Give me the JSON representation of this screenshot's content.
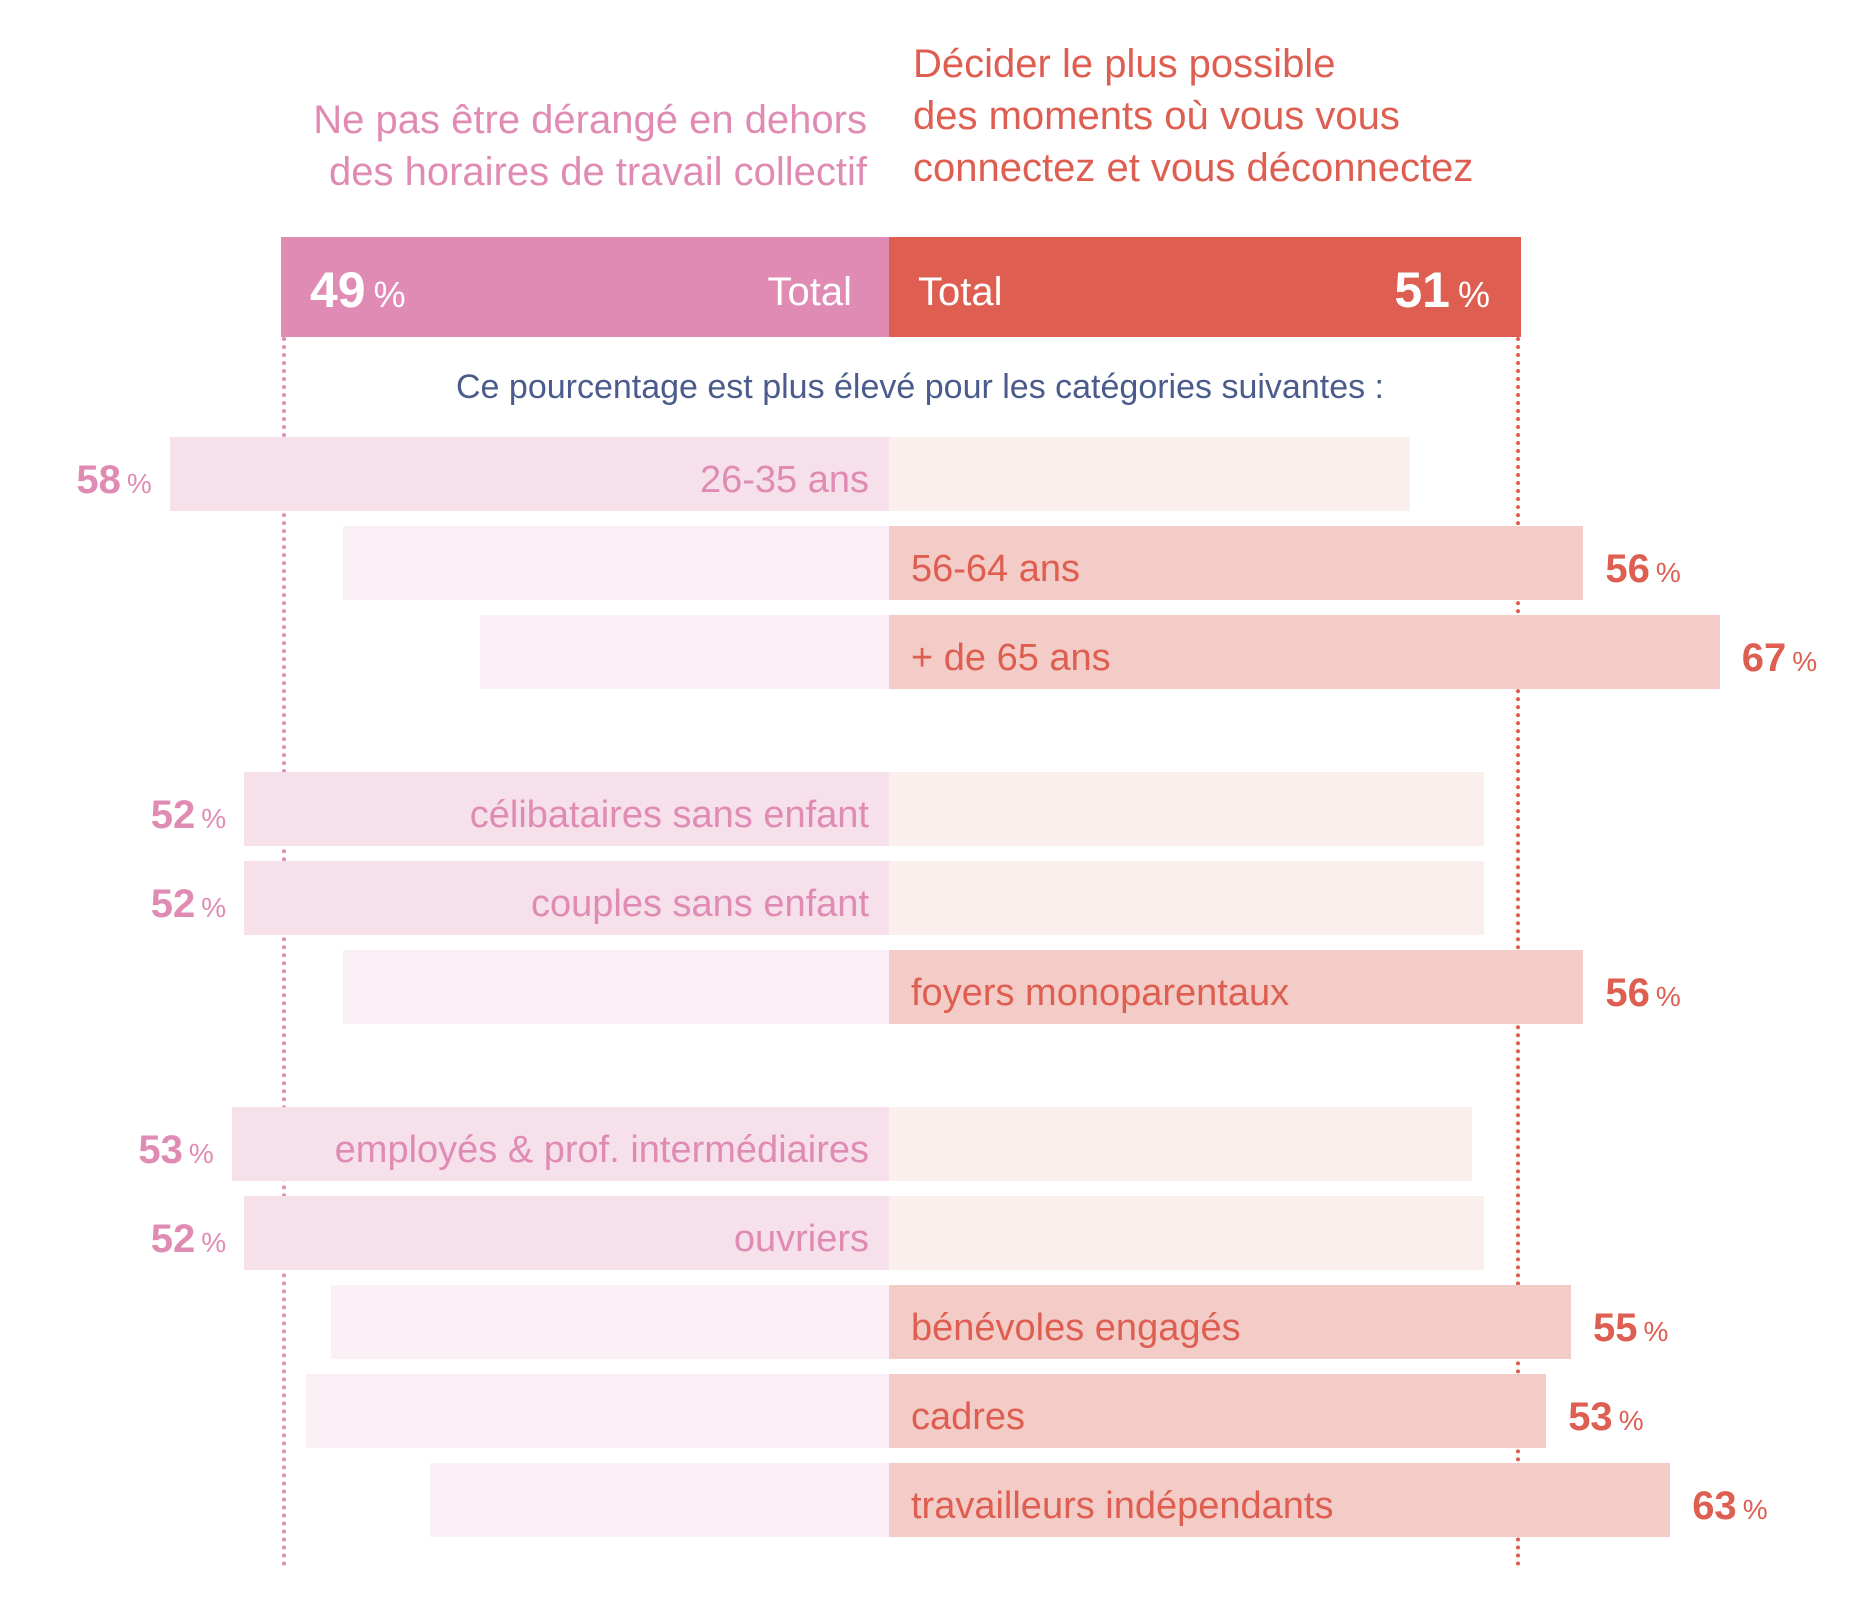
{
  "chart_data": {
    "type": "bar",
    "orientation": "horizontal-diverging",
    "left_header": "Ne pas être dérangé en dehors\ndes horaires de travail collectif",
    "right_header": "Décider le plus possible\ndes moments où vous vous\nconnectez et vous déconnectez",
    "total": {
      "label": "Total",
      "left": 49,
      "right": 51,
      "unit": "%"
    },
    "subtitle": "Ce pourcentage est plus élevé pour les catégories suivantes :",
    "unit": "%",
    "categories": [
      {
        "label": "26-35 ans",
        "left": 58,
        "right": 42,
        "side": "left",
        "group": 0
      },
      {
        "label": "56-64 ans",
        "left": 44,
        "right": 56,
        "side": "right",
        "group": 0
      },
      {
        "label": "+ de 65 ans",
        "left": 33,
        "right": 67,
        "side": "right",
        "group": 0
      },
      {
        "label": "célibataires sans enfant",
        "left": 52,
        "right": 48,
        "side": "left",
        "group": 1
      },
      {
        "label": "couples sans enfant",
        "left": 52,
        "right": 48,
        "side": "left",
        "group": 1
      },
      {
        "label": "foyers monoparentaux",
        "left": 44,
        "right": 56,
        "side": "right",
        "group": 1
      },
      {
        "label": "employés & prof. intermédiaires",
        "left": 53,
        "right": 47,
        "side": "left",
        "group": 2
      },
      {
        "label": "ouvriers",
        "left": 52,
        "right": 48,
        "side": "left",
        "group": 2
      },
      {
        "label": "bénévoles engagés",
        "left": 45,
        "right": 55,
        "side": "right",
        "group": 2
      },
      {
        "label": "cadres",
        "left": 47,
        "right": 53,
        "side": "right",
        "group": 2
      },
      {
        "label": "travailleurs indépendants",
        "left": 37,
        "right": 63,
        "side": "right",
        "group": 2
      }
    ],
    "colors": {
      "left_strong": "#E08BB4",
      "right_strong": "#DE5E51",
      "left_highlight": "#F6E0EA",
      "left_dim": "#FBF0F5",
      "right_highlight": "#F3CBC7",
      "right_dim": "#FAEFEC",
      "subtitle": "#4B5B8C"
    }
  }
}
